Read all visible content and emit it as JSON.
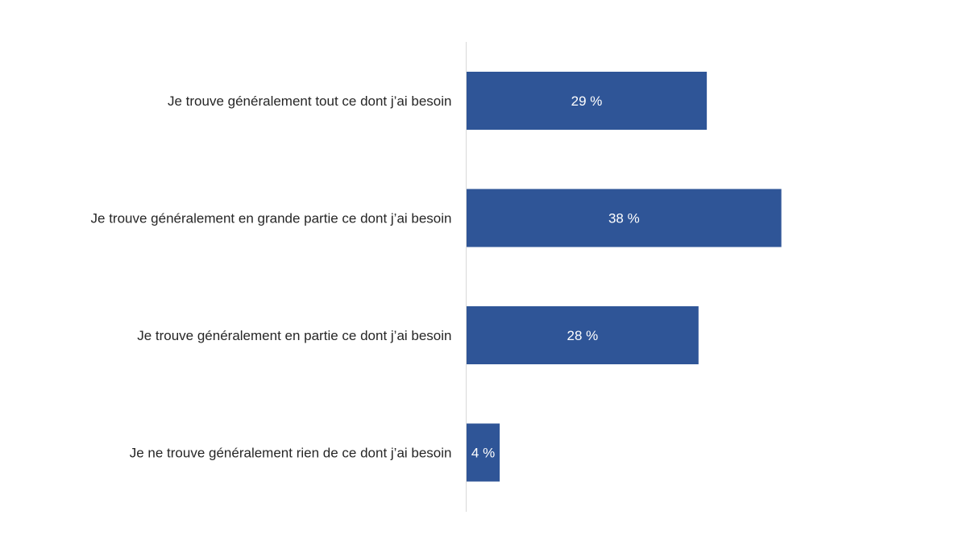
{
  "chart_data": {
    "type": "bar",
    "orientation": "horizontal",
    "categories": [
      "Je trouve généralement tout ce dont j’ai besoin",
      "Je trouve généralement en grande partie ce dont j’ai besoin",
      "Je trouve généralement en partie ce dont j’ai besoin",
      "Je ne trouve généralement rien de ce dont j’ai besoin"
    ],
    "values": [
      29,
      38,
      28,
      4
    ],
    "value_labels": [
      "29 %",
      "38 %",
      "28 %",
      "4 %"
    ],
    "unit": "%",
    "xlim": [
      0,
      60
    ],
    "grid": false,
    "legend": "none",
    "bar_color": "#2F5597",
    "axis_color": "#D9D9D9"
  }
}
